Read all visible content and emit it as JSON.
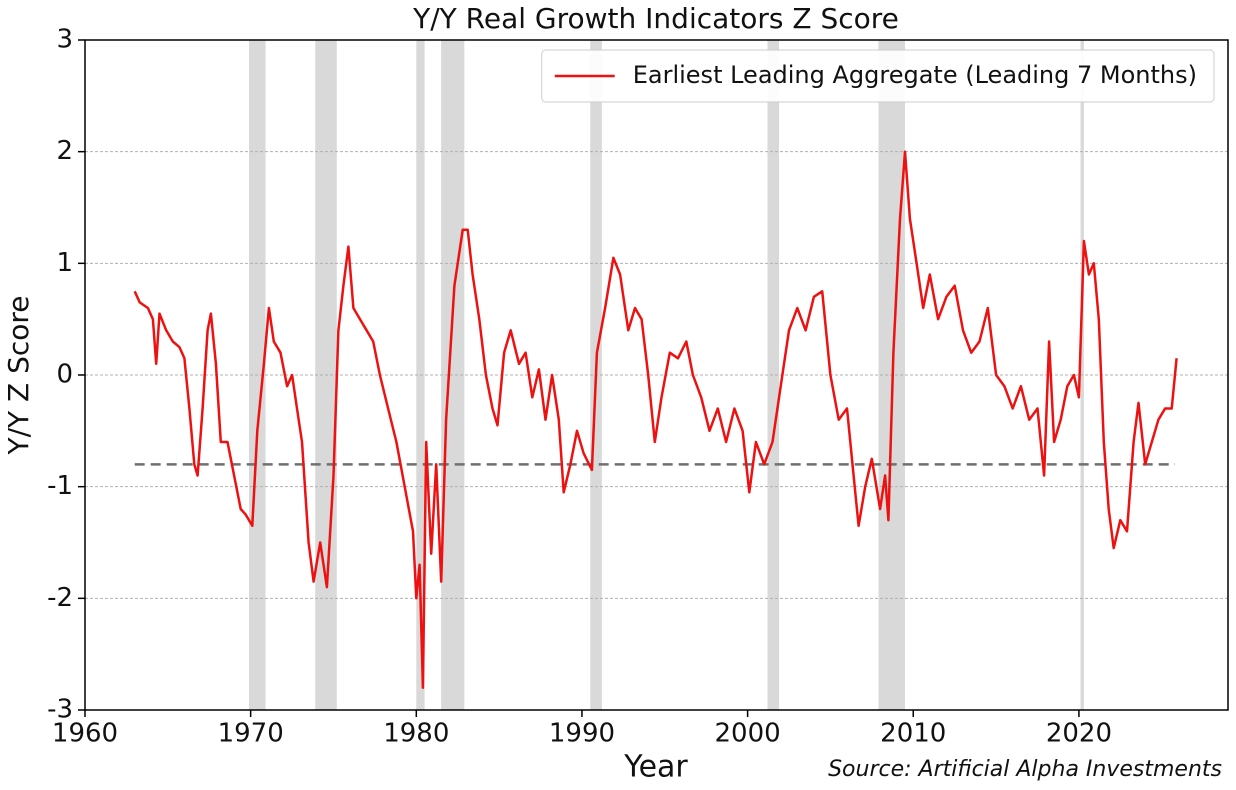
{
  "chart_data": {
    "type": "line",
    "title": "Y/Y Real Growth Indicators Z Score",
    "xlabel": "Year",
    "ylabel": "Y/Y Z Score",
    "source": "Source: Artificial Alpha Investments",
    "xlim": [
      1960,
      2029
    ],
    "xticks": [
      1960,
      1970,
      1980,
      1990,
      2000,
      2010,
      2020
    ],
    "ylim": [
      -3,
      3
    ],
    "yticks": [
      -3,
      -2,
      -1,
      0,
      1,
      2,
      3
    ],
    "grid": true,
    "legend": "upper right",
    "shaded_periods": [
      [
        1969.9,
        1970.9
      ],
      [
        1973.9,
        1975.2
      ],
      [
        1980.0,
        1980.5
      ],
      [
        1981.5,
        1982.9
      ],
      [
        1990.5,
        1991.2
      ],
      [
        2001.2,
        2001.9
      ],
      [
        2007.9,
        2009.5
      ],
      [
        2020.1,
        2020.3
      ]
    ],
    "shade_color": "#d9d9d9",
    "reference_line": {
      "y": -0.8,
      "x": [
        1963,
        2025.8
      ],
      "color": "#707070"
    },
    "series": [
      {
        "name": "Earliest Leading Aggregate (Leading 7 Months)",
        "color": "#ee1111",
        "x": [
          1963.0,
          1963.3,
          1963.8,
          1964.1,
          1964.3,
          1964.5,
          1964.9,
          1965.3,
          1965.7,
          1966.0,
          1966.3,
          1966.6,
          1966.8,
          1967.1,
          1967.4,
          1967.6,
          1967.9,
          1968.2,
          1968.6,
          1969.0,
          1969.4,
          1969.7,
          1970.1,
          1970.4,
          1970.8,
          1971.1,
          1971.4,
          1971.8,
          1972.2,
          1972.5,
          1972.8,
          1973.1,
          1973.5,
          1973.8,
          1974.2,
          1974.6,
          1975.0,
          1975.3,
          1975.6,
          1975.9,
          1976.2,
          1976.6,
          1977.0,
          1977.4,
          1977.8,
          1978.3,
          1978.8,
          1979.3,
          1979.8,
          1980.0,
          1980.2,
          1980.4,
          1980.6,
          1980.9,
          1981.2,
          1981.5,
          1981.8,
          1982.3,
          1982.8,
          1983.1,
          1983.4,
          1983.8,
          1984.2,
          1984.6,
          1984.9,
          1985.3,
          1985.7,
          1986.2,
          1986.6,
          1987.0,
          1987.4,
          1987.8,
          1988.2,
          1988.6,
          1988.9,
          1989.3,
          1989.7,
          1990.1,
          1990.6,
          1990.9,
          1991.4,
          1991.9,
          1992.3,
          1992.8,
          1993.2,
          1993.6,
          1994.0,
          1994.4,
          1994.8,
          1995.3,
          1995.8,
          1996.3,
          1996.7,
          1997.2,
          1997.7,
          1998.2,
          1998.7,
          1999.2,
          1999.7,
          2000.1,
          2000.5,
          2001.0,
          2001.5,
          2002.0,
          2002.5,
          2003.0,
          2003.5,
          2004.0,
          2004.5,
          2005.0,
          2005.5,
          2006.0,
          2006.4,
          2006.7,
          2007.1,
          2007.5,
          2008.0,
          2008.3,
          2008.5,
          2008.8,
          2009.2,
          2009.5,
          2009.8,
          2010.2,
          2010.6,
          2011.0,
          2011.5,
          2012.0,
          2012.5,
          2013.0,
          2013.5,
          2014.0,
          2014.5,
          2015.0,
          2015.5,
          2016.0,
          2016.5,
          2017.0,
          2017.5,
          2017.9,
          2018.2,
          2018.5,
          2018.9,
          2019.3,
          2019.7,
          2020.0,
          2020.3,
          2020.6,
          2020.9,
          2021.2,
          2021.5,
          2021.8,
          2022.1,
          2022.5,
          2022.9,
          2023.3,
          2023.6,
          2024.0,
          2024.4,
          2024.8,
          2025.2,
          2025.6,
          2025.9
        ],
        "values": [
          0.75,
          0.65,
          0.6,
          0.5,
          0.1,
          0.55,
          0.4,
          0.3,
          0.25,
          0.15,
          -0.3,
          -0.8,
          -0.9,
          -0.3,
          0.4,
          0.55,
          0.1,
          -0.6,
          -0.6,
          -0.9,
          -1.2,
          -1.25,
          -1.35,
          -0.5,
          0.1,
          0.6,
          0.3,
          0.2,
          -0.1,
          0.0,
          -0.3,
          -0.6,
          -1.5,
          -1.85,
          -1.5,
          -1.9,
          -0.9,
          0.4,
          0.8,
          1.15,
          0.6,
          0.5,
          0.4,
          0.3,
          0.0,
          -0.3,
          -0.6,
          -1.0,
          -1.4,
          -2.0,
          -1.7,
          -2.8,
          -0.6,
          -1.6,
          -0.8,
          -1.85,
          -0.4,
          0.8,
          1.3,
          1.3,
          0.9,
          0.5,
          0.0,
          -0.3,
          -0.45,
          0.2,
          0.4,
          0.1,
          0.2,
          -0.2,
          0.05,
          -0.4,
          0.0,
          -0.4,
          -1.05,
          -0.8,
          -0.5,
          -0.7,
          -0.85,
          0.2,
          0.6,
          1.05,
          0.9,
          0.4,
          0.6,
          0.5,
          0.0,
          -0.6,
          -0.2,
          0.2,
          0.15,
          0.3,
          0.0,
          -0.2,
          -0.5,
          -0.3,
          -0.6,
          -0.3,
          -0.5,
          -1.05,
          -0.6,
          -0.8,
          -0.6,
          -0.1,
          0.4,
          0.6,
          0.4,
          0.7,
          0.75,
          0.0,
          -0.4,
          -0.3,
          -0.9,
          -1.35,
          -1.0,
          -0.75,
          -1.2,
          -0.9,
          -1.3,
          0.2,
          1.4,
          2.0,
          1.4,
          1.0,
          0.6,
          0.9,
          0.5,
          0.7,
          0.8,
          0.4,
          0.2,
          0.3,
          0.6,
          0.0,
          -0.1,
          -0.3,
          -0.1,
          -0.4,
          -0.3,
          -0.9,
          0.3,
          -0.6,
          -0.4,
          -0.1,
          0.0,
          -0.2,
          1.2,
          0.9,
          1.0,
          0.5,
          -0.6,
          -1.2,
          -1.55,
          -1.3,
          -1.4,
          -0.6,
          -0.25,
          -0.8,
          -0.6,
          -0.4,
          -0.3,
          -0.3,
          0.15
        ]
      }
    ]
  }
}
